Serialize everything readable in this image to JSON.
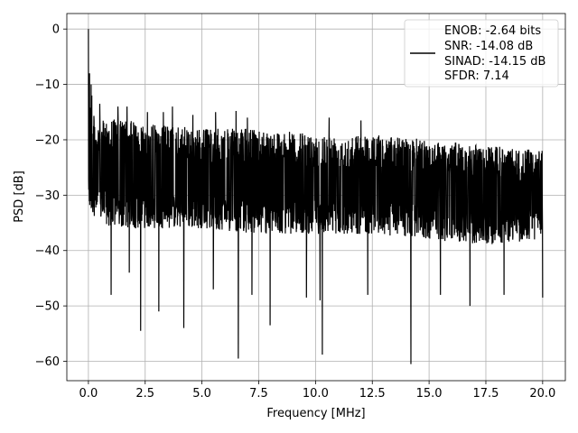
{
  "chart_data": {
    "type": "line",
    "title": "",
    "xlabel": "Frequency [MHz]",
    "ylabel": "PSD [dB]",
    "xlim": [
      -0.95,
      21.0
    ],
    "ylim": [
      -63.5,
      2.8
    ],
    "xticks": [
      0.0,
      2.5,
      5.0,
      7.5,
      10.0,
      12.5,
      15.0,
      17.5,
      20.0
    ],
    "xtick_labels": [
      "0.0",
      "2.5",
      "5.0",
      "7.5",
      "10.0",
      "12.5",
      "15.0",
      "17.5",
      "20.0"
    ],
    "yticks": [
      0,
      -10,
      -20,
      -30,
      -40,
      -50,
      -60
    ],
    "ytick_labels": [
      "0",
      "−10",
      "−20",
      "−30",
      "−40",
      "−50",
      "−60"
    ],
    "grid": true,
    "legend": {
      "placement": "top-right",
      "entries": [
        "ENOB: -2.64 bits",
        "SNR: -14.08 dB",
        "SINAD: -14.15 dB",
        "SFDR: 7.14"
      ]
    },
    "series": [
      {
        "name": "ENOB: -2.64 bits",
        "color": "#000000",
        "x_range": [
          0.0,
          20.0
        ],
        "noise_band_upper": [
          [
            0.0,
            -7
          ],
          [
            0.1,
            -10
          ],
          [
            0.3,
            -15
          ],
          [
            1.0,
            -14
          ],
          [
            2.5,
            -15
          ],
          [
            5.0,
            -16
          ],
          [
            7.5,
            -16
          ],
          [
            10.0,
            -17
          ],
          [
            12.5,
            -17
          ],
          [
            15.0,
            -18
          ],
          [
            17.5,
            -19
          ],
          [
            20.0,
            -20
          ]
        ],
        "noise_band_lower": [
          [
            0.0,
            -35
          ],
          [
            1.0,
            -38
          ],
          [
            2.5,
            -38
          ],
          [
            5.0,
            -38
          ],
          [
            7.5,
            -39
          ],
          [
            10.0,
            -39
          ],
          [
            12.5,
            -39
          ],
          [
            15.0,
            -40
          ],
          [
            17.5,
            -41
          ],
          [
            20.0,
            -40
          ]
        ],
        "peaks": [
          [
            0.0,
            0.0
          ],
          [
            0.05,
            -8
          ],
          [
            0.12,
            -10
          ],
          [
            0.15,
            -12
          ],
          [
            0.5,
            -13.5
          ],
          [
            1.0,
            -14
          ],
          [
            1.3,
            -14
          ],
          [
            1.7,
            -14
          ],
          [
            2.3,
            -13.8
          ],
          [
            2.6,
            -15
          ],
          [
            3.3,
            -15
          ],
          [
            3.7,
            -14
          ],
          [
            4.2,
            -14.2
          ],
          [
            4.6,
            -15.5
          ],
          [
            5.6,
            -15
          ],
          [
            6.5,
            -14.8
          ],
          [
            7.0,
            -16
          ],
          [
            10.6,
            -16
          ],
          [
            12.0,
            -16.5
          ],
          [
            14.2,
            -17
          ]
        ],
        "dips": [
          [
            1.0,
            -48
          ],
          [
            1.8,
            -44
          ],
          [
            2.3,
            -54.5
          ],
          [
            3.1,
            -51
          ],
          [
            4.2,
            -54
          ],
          [
            5.5,
            -47
          ],
          [
            6.6,
            -59.5
          ],
          [
            7.2,
            -48
          ],
          [
            8.0,
            -53.5
          ],
          [
            9.6,
            -48.5
          ],
          [
            10.2,
            -49
          ],
          [
            10.3,
            -58.8
          ],
          [
            12.3,
            -48
          ],
          [
            14.2,
            -60.5
          ],
          [
            15.5,
            -48
          ],
          [
            16.8,
            -50
          ],
          [
            18.3,
            -48
          ],
          [
            20.0,
            -48.5
          ]
        ]
      }
    ]
  }
}
